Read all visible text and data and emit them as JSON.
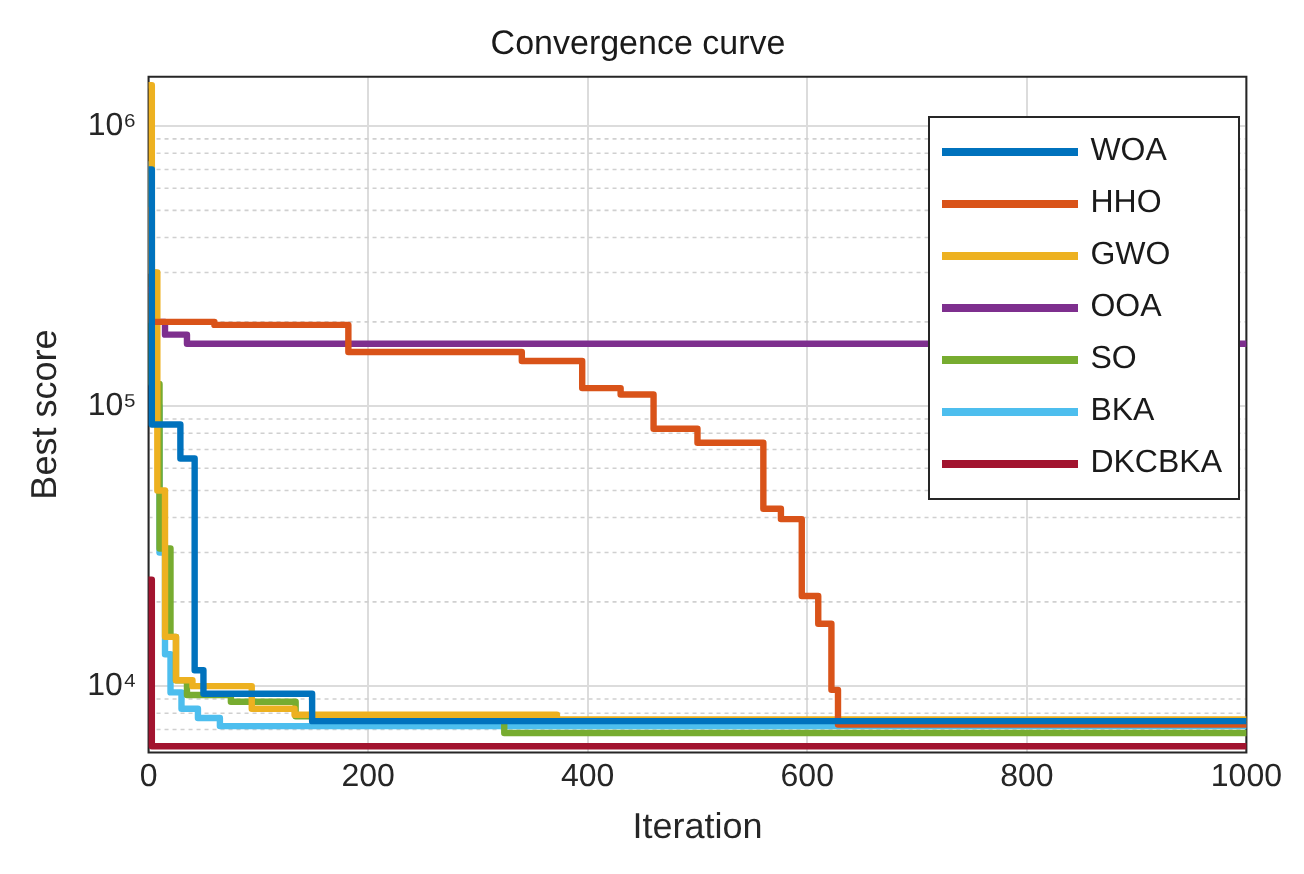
{
  "chart_data": {
    "type": "step",
    "title": "Convergence curve",
    "xlabel": "Iteration",
    "ylabel": "Best score",
    "log": "y",
    "grid": true,
    "legend": "top right",
    "marker": "none",
    "line_style": "solid",
    "xlim": [
      0,
      1000
    ],
    "xticks": [
      0,
      200,
      400,
      600,
      800,
      1000
    ],
    "ylim": [
      5800,
      1500000
    ],
    "yticks": [
      {
        "value": 7000,
        "label": null
      },
      {
        "value": 8000,
        "label": null
      },
      {
        "value": 9000,
        "label": null
      },
      {
        "value": 10000,
        "label": "10⁴"
      },
      {
        "value": 20000,
        "label": null
      },
      {
        "value": 30000,
        "label": null
      },
      {
        "value": 40000,
        "label": null
      },
      {
        "value": 50000,
        "label": null
      },
      {
        "value": 60000,
        "label": null
      },
      {
        "value": 70000,
        "label": null
      },
      {
        "value": 80000,
        "label": null
      },
      {
        "value": 90000,
        "label": null
      },
      {
        "value": 100000,
        "label": "10⁵"
      },
      {
        "value": 200000,
        "label": null
      },
      {
        "value": 300000,
        "label": null
      },
      {
        "value": 400000,
        "label": null
      },
      {
        "value": 500000,
        "label": null
      },
      {
        "value": 600000,
        "label": null
      },
      {
        "value": 700000,
        "label": null
      },
      {
        "value": 800000,
        "label": null
      },
      {
        "value": 900000,
        "label": null
      },
      {
        "value": 1000000,
        "label": "10⁶"
      }
    ],
    "series": [
      {
        "name": "WOA",
        "color": "#0072bd",
        "x": [
          0,
          3,
          29,
          42,
          50,
          149,
          1000
        ],
        "values": [
          700000,
          86000,
          65000,
          11400,
          9400,
          7500,
          7500
        ]
      },
      {
        "name": "HHO",
        "color": "#d95319",
        "x": [
          0,
          3,
          60,
          182,
          340,
          395,
          430,
          460,
          500,
          560,
          576,
          595,
          610,
          622,
          628,
          1000
        ],
        "values": [
          500000,
          200000,
          195000,
          156000,
          145000,
          116000,
          110000,
          83000,
          74000,
          43000,
          39500,
          21000,
          16700,
          9700,
          7300,
          7300
        ]
      },
      {
        "name": "GWO",
        "color": "#edb120",
        "x": [
          0,
          3,
          8,
          15,
          25,
          40,
          94,
          133,
          372,
          1000
        ],
        "values": [
          1400000,
          300000,
          50000,
          15000,
          10500,
          10000,
          8300,
          7900,
          7600,
          7600
        ]
      },
      {
        "name": "OOA",
        "color": "#7e2f8e",
        "x": [
          0,
          5,
          15,
          35,
          1000
        ],
        "values": [
          260000,
          200000,
          180000,
          167000,
          167000
        ]
      },
      {
        "name": "SO",
        "color": "#77ac30",
        "x": [
          0,
          3,
          10,
          20,
          25,
          35,
          75,
          134,
          324,
          1000
        ],
        "values": [
          500000,
          120000,
          31000,
          15000,
          10500,
          9300,
          8800,
          7800,
          6800,
          6800
        ]
      },
      {
        "name": "BKA",
        "color": "#4dbeee",
        "x": [
          0,
          3,
          6,
          10,
          15,
          20,
          30,
          45,
          65,
          1000
        ],
        "values": [
          730000,
          300000,
          100000,
          30000,
          13000,
          9500,
          8300,
          7700,
          7200,
          7200
        ]
      },
      {
        "name": "DKCBKA",
        "color": "#a2142f",
        "x": [
          0,
          1,
          2,
          3,
          100,
          200,
          300,
          400,
          500,
          600,
          700,
          800,
          900,
          1000
        ],
        "values": [
          24000,
          24000,
          24000,
          6100,
          6100,
          6100,
          6100,
          6100,
          6100,
          6100,
          6100,
          6100,
          6100,
          6100
        ]
      }
    ]
  }
}
